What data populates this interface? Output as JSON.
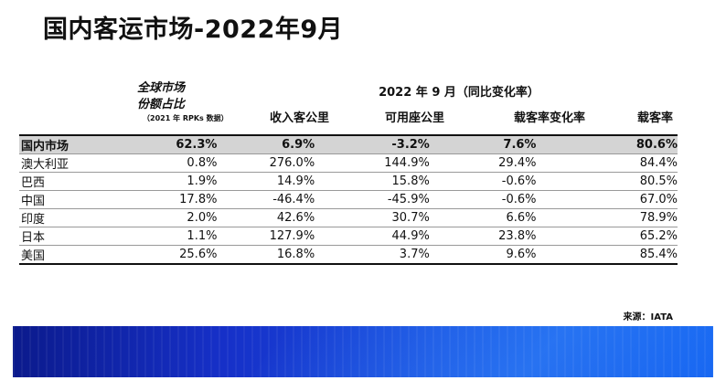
{
  "title": "国内客运市场-2022年9月",
  "header": {
    "global_share_line1": "全球市场",
    "global_share_line2": "份额占比",
    "global_share_note": "（2021 年 RPKs 数据）",
    "period": "2022 年 9 月（同比变化率）",
    "rpk": "收入客公里",
    "ask": "可用座公里",
    "plf_change": "载客率变化率",
    "plf": "载客率"
  },
  "rows": [
    {
      "name": "国内市场",
      "share": "62.3%",
      "rpk": "6.9%",
      "ask": "-3.2%",
      "plf_change": "7.6%",
      "plf": "80.6%"
    },
    {
      "name": "澳大利亚",
      "share": "0.8%",
      "rpk": "276.0%",
      "ask": "144.9%",
      "plf_change": "29.4%",
      "plf": "84.4%"
    },
    {
      "name": "巴西",
      "share": "1.9%",
      "rpk": "14.9%",
      "ask": "15.8%",
      "plf_change": "-0.6%",
      "plf": "80.5%"
    },
    {
      "name": "中国",
      "share": "17.8%",
      "rpk": "-46.4%",
      "ask": "-45.9%",
      "plf_change": "-0.6%",
      "plf": "67.0%"
    },
    {
      "name": "印度",
      "share": "2.0%",
      "rpk": "42.6%",
      "ask": "30.7%",
      "plf_change": "6.6%",
      "plf": "78.9%"
    },
    {
      "name": "日本",
      "share": "1.1%",
      "rpk": "127.9%",
      "ask": "44.9%",
      "plf_change": "23.8%",
      "plf": "65.2%"
    },
    {
      "name": "美国",
      "share": "25.6%",
      "rpk": "16.8%",
      "ask": "3.7%",
      "plf_change": "9.6%",
      "plf": "85.4%"
    }
  ],
  "source": "来源：IATA",
  "colors": {
    "banner_dark": "#0b1a8c",
    "banner_light": "#1260f0",
    "highlight_row": "#d4d4d4"
  }
}
